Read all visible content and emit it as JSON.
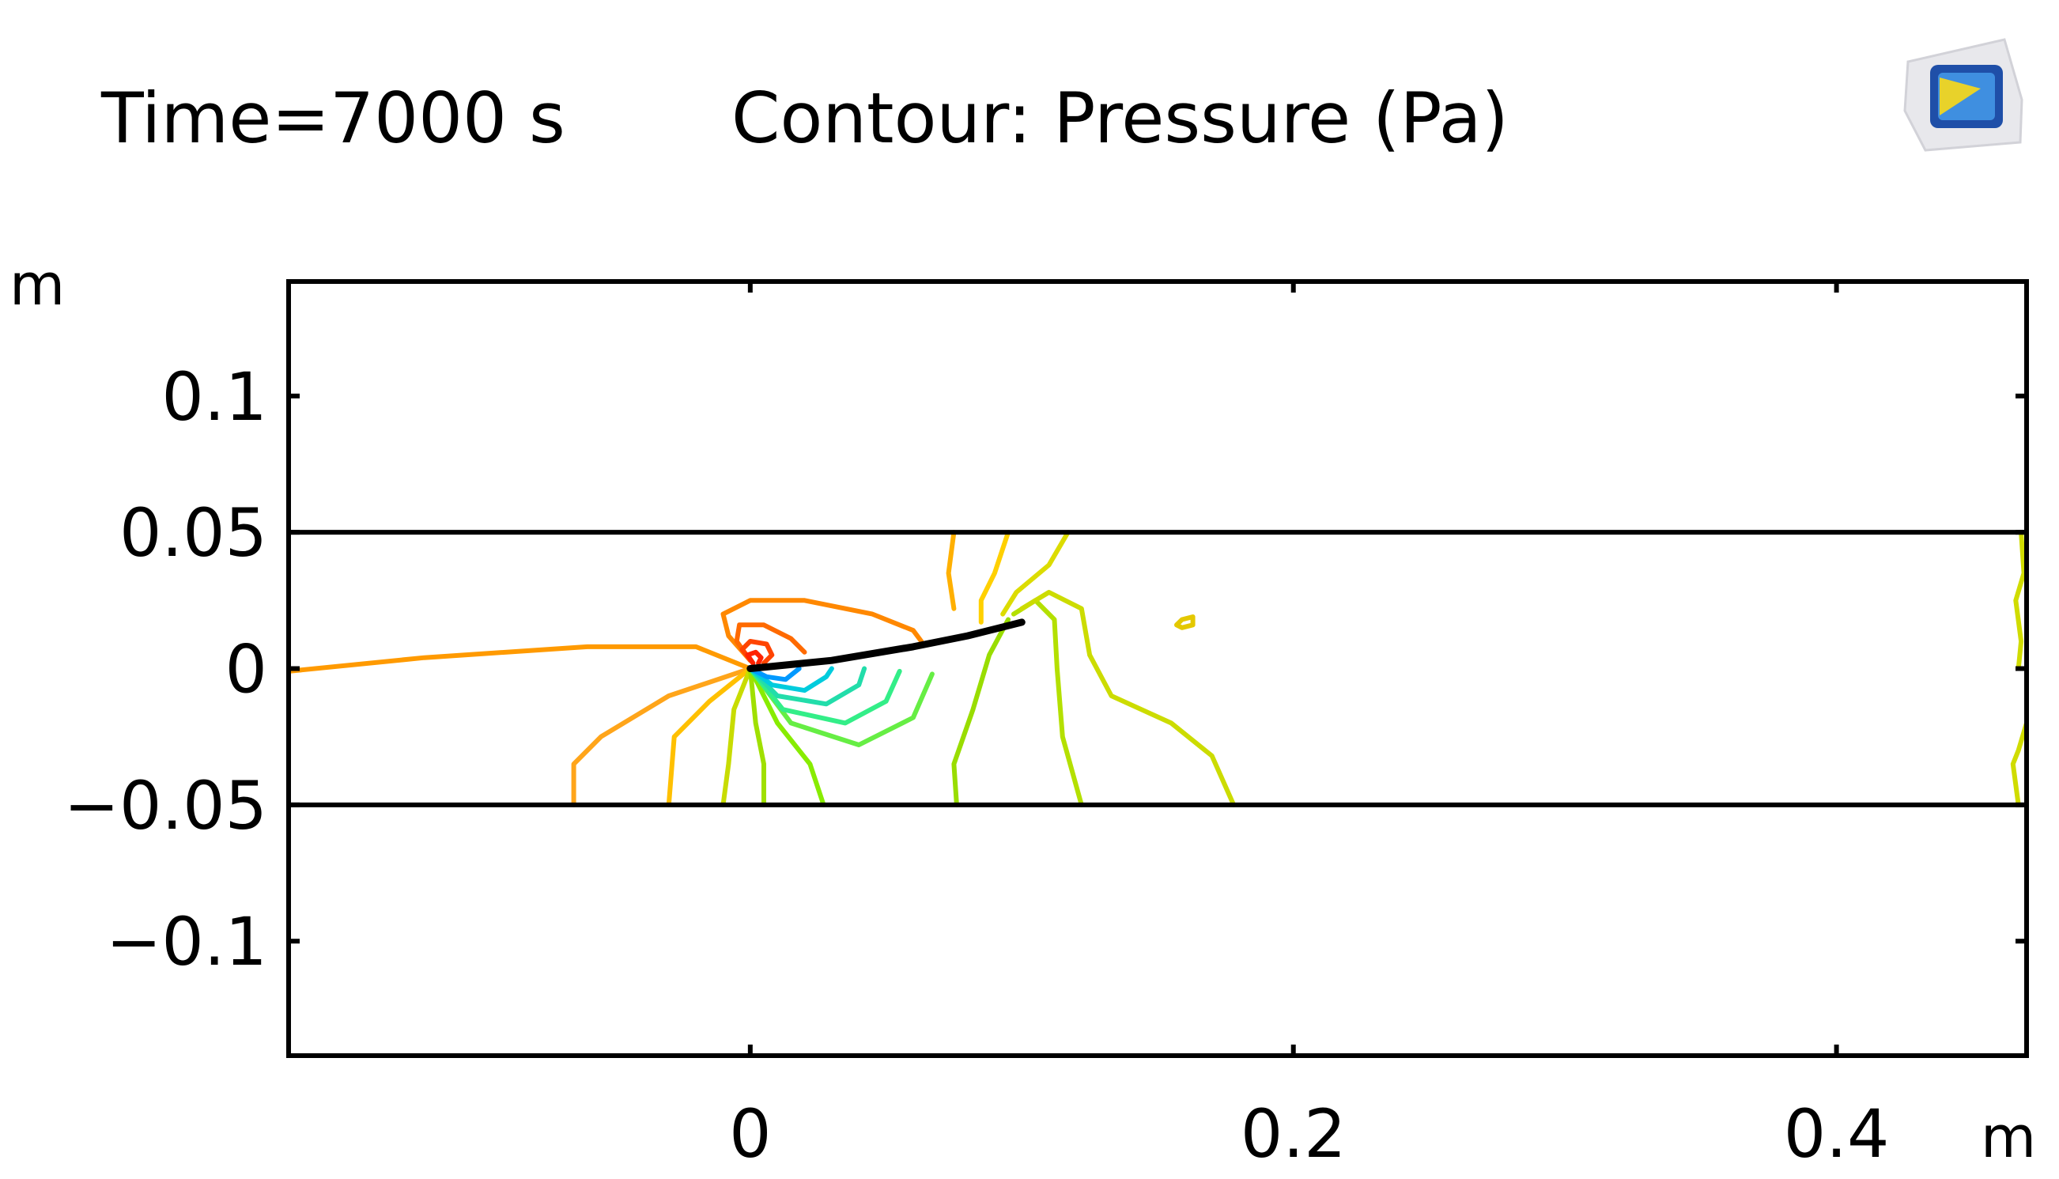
{
  "header": {
    "time_label": "Time=7000 s",
    "plot_label": "Contour: Pressure (Pa)"
  },
  "logo": {
    "icon": "comsol-logo-icon",
    "colors": [
      "#1f4fa8",
      "#3f8fe0",
      "#e8d22a"
    ]
  },
  "chart_data": {
    "type": "contour",
    "title": "Contour: Pressure (Pa)",
    "subtitle": "Time=7000 s",
    "xlabel": "m",
    "ylabel": "m",
    "xlim": [
      -0.17,
      0.47
    ],
    "ylim": [
      -0.142,
      0.142
    ],
    "x_ticks": [
      {
        "value": 0,
        "label": "0"
      },
      {
        "value": 0.2,
        "label": "0.2"
      },
      {
        "value": 0.4,
        "label": "0.4"
      }
    ],
    "y_ticks": [
      {
        "value": 0.1,
        "label": "0.1"
      },
      {
        "value": 0.05,
        "label": "0.05"
      },
      {
        "value": 0,
        "label": "0"
      },
      {
        "value": -0.05,
        "label": "−0.05"
      },
      {
        "value": -0.1,
        "label": "−0.1"
      }
    ],
    "grid": false,
    "legend": "none",
    "channel": {
      "y_top": 0.05,
      "y_bottom": -0.05,
      "color": "#000000"
    },
    "structure": {
      "name": "flap",
      "color": "#000000",
      "points": [
        [
          0.0,
          0.0
        ],
        [
          0.03,
          0.003
        ],
        [
          0.06,
          0.008
        ],
        [
          0.08,
          0.012
        ],
        [
          0.1,
          0.017
        ]
      ]
    },
    "contours": [
      {
        "color": "#ff9a00",
        "points": [
          [
            -0.17,
            -0.001
          ],
          [
            -0.12,
            0.004
          ],
          [
            -0.06,
            0.008
          ],
          [
            -0.02,
            0.008
          ],
          [
            -0.005,
            0.002
          ],
          [
            0.0,
            0.0
          ]
        ]
      },
      {
        "color": "#ffa51a",
        "points": [
          [
            0.0,
            0.0
          ],
          [
            -0.03,
            -0.01
          ],
          [
            -0.055,
            -0.025
          ],
          [
            -0.065,
            -0.035
          ],
          [
            -0.065,
            -0.05
          ]
        ]
      },
      {
        "color": "#ffc000",
        "points": [
          [
            0.0,
            0.0
          ],
          [
            -0.015,
            -0.012
          ],
          [
            -0.028,
            -0.025
          ],
          [
            -0.03,
            -0.05
          ]
        ]
      },
      {
        "color": "#c8dc00",
        "points": [
          [
            0.0,
            0.0
          ],
          [
            -0.006,
            -0.015
          ],
          [
            -0.008,
            -0.035
          ],
          [
            -0.01,
            -0.05
          ]
        ]
      },
      {
        "color": "#a0e000",
        "points": [
          [
            0.0,
            0.0
          ],
          [
            0.002,
            -0.02
          ],
          [
            0.005,
            -0.035
          ],
          [
            0.005,
            -0.05
          ]
        ]
      },
      {
        "color": "#88ec00",
        "points": [
          [
            0.0,
            0.0
          ],
          [
            0.01,
            -0.02
          ],
          [
            0.022,
            -0.035
          ],
          [
            0.027,
            -0.05
          ]
        ]
      },
      {
        "color": "#66ee44",
        "points": [
          [
            0.0,
            0.0
          ],
          [
            0.015,
            -0.02
          ],
          [
            0.04,
            -0.028
          ],
          [
            0.06,
            -0.018
          ],
          [
            0.067,
            -0.002
          ]
        ]
      },
      {
        "color": "#33ee88",
        "points": [
          [
            0.0,
            0.0
          ],
          [
            0.012,
            -0.015
          ],
          [
            0.035,
            -0.02
          ],
          [
            0.05,
            -0.012
          ],
          [
            0.055,
            -0.001
          ]
        ]
      },
      {
        "color": "#22ddaa",
        "points": [
          [
            0.0,
            0.0
          ],
          [
            0.01,
            -0.01
          ],
          [
            0.028,
            -0.013
          ],
          [
            0.04,
            -0.006
          ],
          [
            0.042,
            0.0
          ]
        ]
      },
      {
        "color": "#00ccdd",
        "points": [
          [
            0.0,
            0.0
          ],
          [
            0.008,
            -0.006
          ],
          [
            0.02,
            -0.008
          ],
          [
            0.028,
            -0.003
          ],
          [
            0.03,
            0.0
          ]
        ]
      },
      {
        "color": "#0099ff",
        "points": [
          [
            0.0,
            0.0
          ],
          [
            0.006,
            -0.003
          ],
          [
            0.013,
            -0.004
          ],
          [
            0.018,
            0.0
          ]
        ]
      },
      {
        "color": "#ff8800",
        "points": [
          [
            0.0,
            0.003
          ],
          [
            -0.008,
            0.012
          ],
          [
            -0.01,
            0.02
          ],
          [
            0.0,
            0.025
          ],
          [
            0.02,
            0.025
          ],
          [
            0.045,
            0.02
          ],
          [
            0.06,
            0.014
          ],
          [
            0.063,
            0.01
          ]
        ]
      },
      {
        "color": "#ff6a00",
        "points": [
          [
            0.0,
            0.003
          ],
          [
            -0.005,
            0.01
          ],
          [
            -0.004,
            0.016
          ],
          [
            0.005,
            0.016
          ],
          [
            0.015,
            0.011
          ],
          [
            0.02,
            0.006
          ]
        ]
      },
      {
        "color": "#ff4400",
        "points": [
          [
            0.001,
            0.002
          ],
          [
            -0.003,
            0.007
          ],
          [
            0.0,
            0.01
          ],
          [
            0.006,
            0.009
          ],
          [
            0.008,
            0.005
          ],
          [
            0.005,
            0.002
          ]
        ]
      },
      {
        "color": "#ff2200",
        "points": [
          [
            0.001,
            0.002
          ],
          [
            -0.001,
            0.005
          ],
          [
            0.002,
            0.006
          ],
          [
            0.004,
            0.004
          ],
          [
            0.003,
            0.002
          ]
        ]
      },
      {
        "color": "#ffb000",
        "points": [
          [
            0.075,
            0.05
          ],
          [
            0.073,
            0.035
          ],
          [
            0.075,
            0.022
          ]
        ]
      },
      {
        "color": "#ffd000",
        "points": [
          [
            0.095,
            0.05
          ],
          [
            0.09,
            0.035
          ],
          [
            0.085,
            0.025
          ],
          [
            0.085,
            0.017
          ]
        ]
      },
      {
        "color": "#dcdc00",
        "points": [
          [
            0.117,
            0.05
          ],
          [
            0.11,
            0.038
          ],
          [
            0.098,
            0.028
          ],
          [
            0.093,
            0.02
          ]
        ]
      },
      {
        "color": "#99dd00",
        "points": [
          [
            0.095,
            0.018
          ],
          [
            0.088,
            0.005
          ],
          [
            0.082,
            -0.015
          ],
          [
            0.075,
            -0.035
          ],
          [
            0.076,
            -0.05
          ]
        ]
      },
      {
        "color": "#b4e000",
        "points": [
          [
            0.097,
            0.02
          ],
          [
            0.105,
            0.025
          ],
          [
            0.112,
            0.018
          ],
          [
            0.113,
            0.0
          ],
          [
            0.115,
            -0.025
          ],
          [
            0.122,
            -0.05
          ]
        ]
      },
      {
        "color": "#ccdc00",
        "points": [
          [
            0.1,
            0.022
          ],
          [
            0.11,
            0.028
          ],
          [
            0.122,
            0.022
          ],
          [
            0.125,
            0.005
          ],
          [
            0.133,
            -0.01
          ],
          [
            0.155,
            -0.02
          ],
          [
            0.17,
            -0.032
          ],
          [
            0.178,
            -0.05
          ]
        ]
      },
      {
        "color": "#e4c800",
        "points": [
          [
            0.157,
            0.016
          ],
          [
            0.159,
            0.018
          ],
          [
            0.163,
            0.019
          ],
          [
            0.163,
            0.016
          ],
          [
            0.159,
            0.015
          ],
          [
            0.157,
            0.016
          ]
        ]
      },
      {
        "color": "#d0dc00",
        "points": [
          [
            0.468,
            0.05
          ],
          [
            0.469,
            0.035
          ],
          [
            0.466,
            0.025
          ],
          [
            0.468,
            0.01
          ],
          [
            0.467,
            0.0
          ]
        ]
      },
      {
        "color": "#d0dc00",
        "points": [
          [
            0.47,
            -0.02
          ],
          [
            0.467,
            -0.03
          ],
          [
            0.465,
            -0.035
          ],
          [
            0.467,
            -0.05
          ]
        ]
      }
    ]
  }
}
